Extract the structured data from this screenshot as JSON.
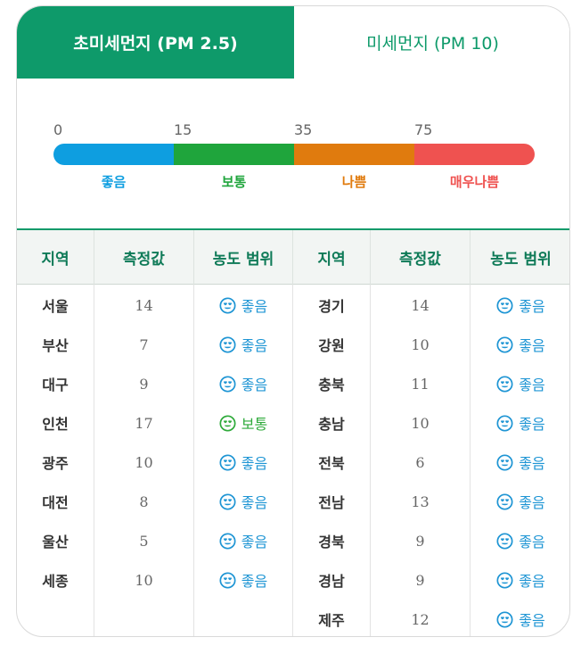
{
  "tabs": [
    {
      "label": "초미세먼지 (PM 2.5)",
      "active": true
    },
    {
      "label": "미세먼지 (PM 10)",
      "active": false
    }
  ],
  "scale": {
    "ticks": [
      "0",
      "15",
      "35",
      "75"
    ],
    "segments": [
      {
        "label": "좋음",
        "color": "#0e9ee0"
      },
      {
        "label": "보통",
        "color": "#1fa53c"
      },
      {
        "label": "나쁨",
        "color": "#e07b0e"
      },
      {
        "label": "매우나쁨",
        "color": "#ef5250"
      }
    ]
  },
  "table": {
    "headers": [
      "지역",
      "측정값",
      "농도 범위",
      "지역",
      "측정값",
      "농도 범위"
    ],
    "left": [
      {
        "region": "서울",
        "value": "14",
        "grade": "좋음",
        "level": "good"
      },
      {
        "region": "부산",
        "value": "7",
        "grade": "좋음",
        "level": "good"
      },
      {
        "region": "대구",
        "value": "9",
        "grade": "좋음",
        "level": "good"
      },
      {
        "region": "인천",
        "value": "17",
        "grade": "보통",
        "level": "normal"
      },
      {
        "region": "광주",
        "value": "10",
        "grade": "좋음",
        "level": "good"
      },
      {
        "region": "대전",
        "value": "8",
        "grade": "좋음",
        "level": "good"
      },
      {
        "region": "울산",
        "value": "5",
        "grade": "좋음",
        "level": "good"
      },
      {
        "region": "세종",
        "value": "10",
        "grade": "좋음",
        "level": "good"
      }
    ],
    "right": [
      {
        "region": "경기",
        "value": "14",
        "grade": "좋음",
        "level": "good"
      },
      {
        "region": "강원",
        "value": "10",
        "grade": "좋음",
        "level": "good"
      },
      {
        "region": "충북",
        "value": "11",
        "grade": "좋음",
        "level": "good"
      },
      {
        "region": "충남",
        "value": "10",
        "grade": "좋음",
        "level": "good"
      },
      {
        "region": "전북",
        "value": "6",
        "grade": "좋음",
        "level": "good"
      },
      {
        "region": "전남",
        "value": "13",
        "grade": "좋음",
        "level": "good"
      },
      {
        "region": "경북",
        "value": "9",
        "grade": "좋음",
        "level": "good"
      },
      {
        "region": "경남",
        "value": "9",
        "grade": "좋음",
        "level": "good"
      },
      {
        "region": "제주",
        "value": "12",
        "grade": "좋음",
        "level": "good"
      }
    ]
  },
  "icons": {
    "grade_face": "smiling-face-with-heart-eyes-icon"
  },
  "colors": {
    "accent": "#0e9a6a",
    "good": "#1e95d4",
    "normal": "#2eaa3a"
  }
}
